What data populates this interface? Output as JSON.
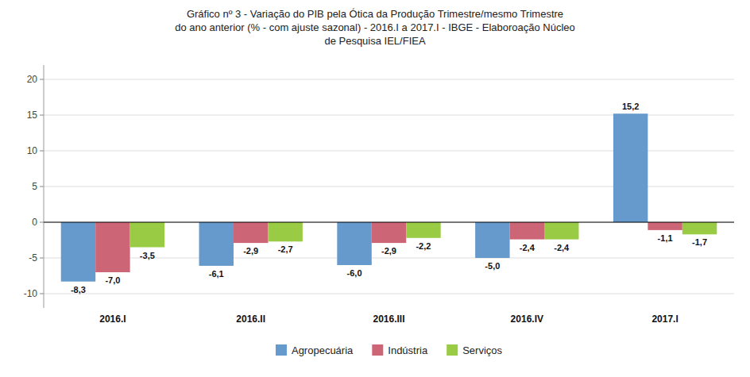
{
  "chart_data": {
    "type": "bar",
    "title": "Gráfico nº 3 - Variação do PIB pela Ótica da Produção Trimestre/mesmo Trimestre\ndo ano anterior (% - com ajuste sazonal) - 2016.I a 2017.I - IBGE - Elaboroação Núcleo\nde Pesquisa IEL/FIEA",
    "categories": [
      "2016.I",
      "2016.II",
      "2016.III",
      "2016.IV",
      "2017.I"
    ],
    "series": [
      {
        "name": "Agropecuária",
        "color": "#6699CC",
        "values": [
          -8.3,
          -6.1,
          -6.0,
          -5.0,
          15.2
        ],
        "value_labels": [
          "-8,3",
          "-6,1",
          "-6,0",
          "-5,0",
          "15,2"
        ]
      },
      {
        "name": "Indústria",
        "color": "#CC6677",
        "values": [
          -7.0,
          -2.9,
          -2.9,
          -2.4,
          -1.1
        ],
        "value_labels": [
          "-7,0",
          "-2,9",
          "-2,9",
          "-2,4",
          "-1,1"
        ]
      },
      {
        "name": "Serviços",
        "color": "#99CC44",
        "values": [
          -3.5,
          -2.7,
          -2.2,
          -2.4,
          -1.7
        ],
        "value_labels": [
          "-3,5",
          "-2,7",
          "-2,2",
          "-2,4",
          "-1,7"
        ]
      }
    ],
    "ylim": [
      -12,
      22
    ],
    "yticks": [
      -10,
      -5,
      0,
      5,
      10,
      15,
      20
    ],
    "grid": true,
    "legend": "bottom",
    "data_labels": true
  }
}
